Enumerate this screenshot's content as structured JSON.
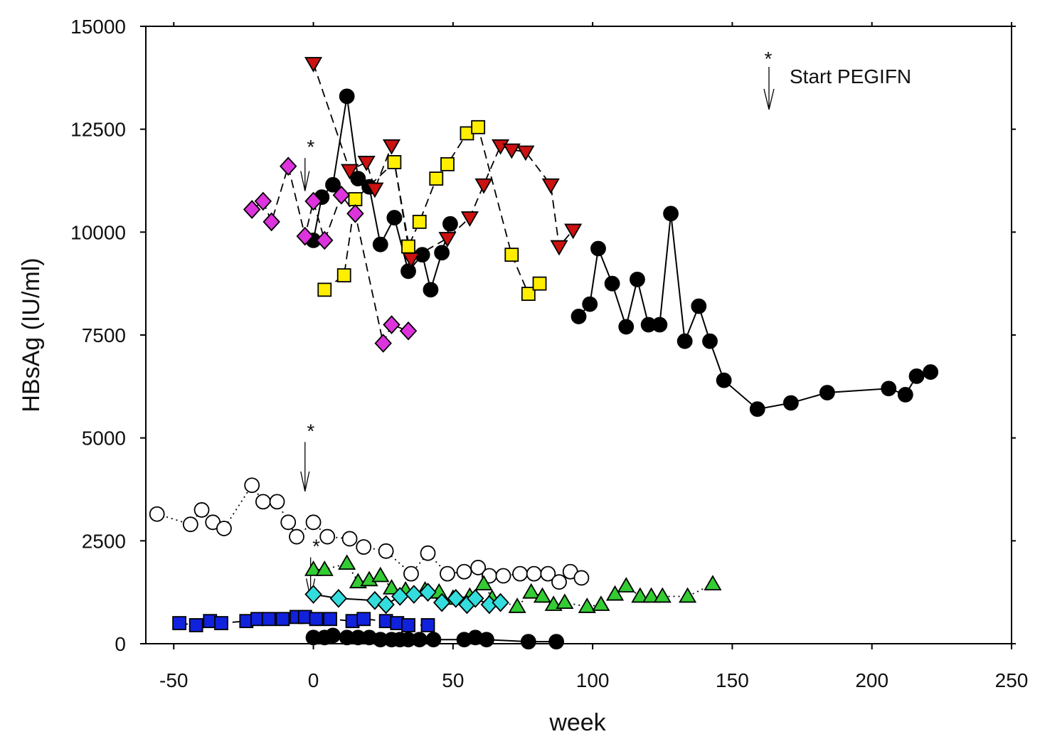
{
  "chart_data": {
    "type": "scatter",
    "title": "",
    "xlabel": "week",
    "ylabel": "HBsAg (IU/ml)",
    "xlim": [
      -60,
      250
    ],
    "ylim": [
      0,
      15000
    ],
    "x_ticks": [
      -50,
      0,
      50,
      100,
      150,
      200,
      250
    ],
    "y_ticks": [
      0,
      2500,
      5000,
      7500,
      10000,
      12500,
      15000
    ],
    "x_tick_labels": [
      "-50",
      "0",
      "50",
      "100",
      "150",
      "200",
      "250"
    ],
    "y_tick_labels": [
      "0",
      "2500",
      "5000",
      "7500",
      "10000",
      "12500",
      "15000"
    ],
    "legend_annotation": {
      "marker": "*",
      "text": "Start PEGIFN"
    },
    "start_markers": [
      {
        "x": -3,
        "y": 11800,
        "y_end": 11000
      },
      {
        "x": -3,
        "y": 4900,
        "y_end": 3700
      },
      {
        "x": -1,
        "y": 2100,
        "y_end": 1100
      }
    ],
    "series": [
      {
        "name": "black-circle-high",
        "marker": "circle",
        "fill": "#000000",
        "line": "solid",
        "x": [
          0,
          3,
          7,
          12,
          16,
          20,
          24,
          29,
          34,
          39,
          42,
          46,
          49
        ],
        "y": [
          9800,
          10850,
          11150,
          13300,
          11300,
          11100,
          9700,
          10350,
          9050,
          9450,
          8600,
          9500,
          10200
        ]
      },
      {
        "name": "black-circle-high-late",
        "marker": "circle",
        "fill": "#000000",
        "line": "solid",
        "x": [
          95,
          99,
          102,
          107,
          112,
          116,
          120,
          124,
          128,
          133,
          138,
          142,
          147,
          159,
          171,
          184,
          206,
          212,
          216,
          221
        ],
        "y": [
          7950,
          8250,
          9600,
          8750,
          7700,
          8850,
          7750,
          7750,
          10450,
          7350,
          8200,
          7350,
          6400,
          5700,
          5850,
          6100,
          6200,
          6050,
          6500,
          6600
        ]
      },
      {
        "name": "red-down-triangle",
        "marker": "triangle-down",
        "fill": "#cc1111",
        "line": "dashed",
        "x": [
          0,
          13,
          19,
          22,
          28,
          35,
          48,
          56,
          61,
          67,
          71,
          76,
          85,
          88,
          93
        ],
        "y": [
          14100,
          11500,
          11700,
          11050,
          12100,
          9350,
          9850,
          10350,
          11150,
          12100,
          12000,
          11950,
          11150,
          9650,
          10050
        ]
      },
      {
        "name": "yellow-square",
        "marker": "square",
        "fill": "#ffee00",
        "line": "dashed",
        "x": [
          4,
          11,
          15,
          29,
          34,
          38,
          44,
          48,
          55,
          59,
          71,
          77,
          81
        ],
        "y": [
          8600,
          8950,
          10800,
          11700,
          9650,
          10250,
          11300,
          11650,
          12400,
          12550,
          9450,
          8500,
          8750
        ]
      },
      {
        "name": "magenta-diamond",
        "marker": "diamond",
        "fill": "#dd33dd",
        "line": "dashed",
        "x": [
          -22,
          -18,
          -15,
          -9,
          -3,
          0,
          4,
          10,
          15,
          25,
          28,
          34
        ],
        "y": [
          10550,
          10750,
          10250,
          11600,
          9900,
          10750,
          9800,
          10900,
          10450,
          7300,
          7750,
          7600
        ]
      },
      {
        "name": "open-circle",
        "marker": "circle",
        "fill": "#ffffff",
        "line": "dotted",
        "x": [
          -56,
          -44,
          -40,
          -36,
          -32,
          -22,
          -18,
          -13,
          -9,
          -6,
          0,
          5,
          13,
          18,
          26,
          35,
          41,
          48,
          54,
          59,
          63,
          68,
          74,
          79,
          84,
          88,
          92,
          96
        ],
        "y": [
          3150,
          2900,
          3250,
          2950,
          2800,
          3850,
          3450,
          3450,
          2950,
          2600,
          2950,
          2600,
          2550,
          2350,
          2250,
          1700,
          2200,
          1700,
          1750,
          1850,
          1650,
          1650,
          1700,
          1700,
          1700,
          1500,
          1750,
          1600
        ]
      },
      {
        "name": "green-up-triangle",
        "marker": "triangle-up",
        "fill": "#33cc33",
        "line": "dotted",
        "x": [
          0,
          4,
          12,
          16,
          20,
          24,
          28,
          33,
          40,
          45,
          50,
          56,
          61,
          64,
          73,
          78,
          82,
          86,
          90,
          98,
          103,
          108,
          112,
          117,
          121,
          125,
          134,
          143
        ],
        "y": [
          1800,
          1800,
          1950,
          1500,
          1550,
          1650,
          1350,
          1300,
          1300,
          1250,
          1100,
          1150,
          1450,
          1100,
          900,
          1250,
          1150,
          950,
          1000,
          900,
          950,
          1200,
          1400,
          1150,
          1150,
          1150,
          1150,
          1450
        ]
      },
      {
        "name": "cyan-diamond",
        "marker": "diamond",
        "fill": "#33dddd",
        "line": "solid",
        "x": [
          0,
          9,
          22,
          26,
          31,
          36,
          41,
          46,
          51,
          55,
          58,
          63,
          67
        ],
        "y": [
          1200,
          1100,
          1050,
          950,
          1150,
          1200,
          1250,
          1000,
          1100,
          950,
          1100,
          950,
          1000
        ]
      },
      {
        "name": "blue-square",
        "marker": "square",
        "fill": "#1122dd",
        "line": "dashed",
        "x": [
          -48,
          -42,
          -37,
          -33,
          -24,
          -20,
          -16,
          -11,
          -6,
          -3,
          1,
          6,
          14,
          18,
          26,
          30,
          34,
          41
        ],
        "y": [
          500,
          450,
          550,
          500,
          550,
          600,
          600,
          600,
          650,
          650,
          600,
          600,
          550,
          600,
          550,
          500,
          450,
          450
        ]
      },
      {
        "name": "black-circle-low",
        "marker": "circle",
        "fill": "#000000",
        "line": "solid",
        "x": [
          0,
          4,
          7,
          12,
          16,
          20,
          24,
          28,
          31,
          34,
          38,
          43,
          54,
          58,
          62,
          77,
          87
        ],
        "y": [
          150,
          150,
          200,
          150,
          150,
          150,
          100,
          100,
          100,
          100,
          100,
          100,
          100,
          150,
          100,
          50,
          50
        ]
      }
    ]
  }
}
